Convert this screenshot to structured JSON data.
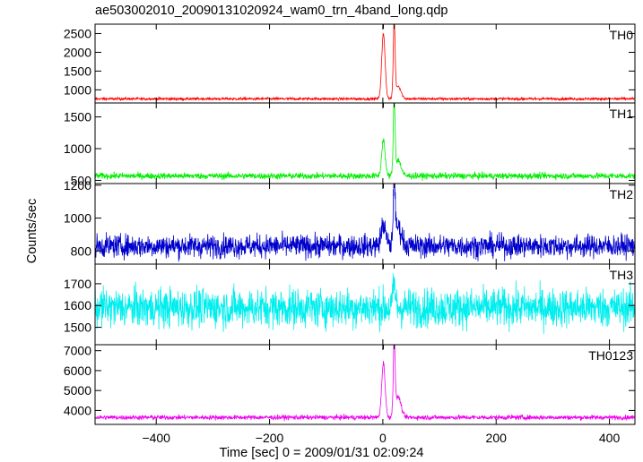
{
  "chart_data": {
    "type": "line",
    "title": "ae503002010_20090131020924_wam0_trn_4band_long.qdp",
    "xlabel": "Time [sec] 0 = 2009/01/31 02:09:24",
    "ylabel": "Counts/sec",
    "xlim": [
      -508,
      445
    ],
    "xticks": [
      -400,
      -200,
      0,
      200,
      400
    ],
    "peak_times": [
      1,
      20
    ],
    "panels": [
      {
        "name": "TH0",
        "color": "#ff0000",
        "ylim": [
          650,
          2750
        ],
        "yticks": [
          1000,
          1500,
          2000,
          2500
        ],
        "baseline": 760,
        "noise": 18,
        "features": [
          {
            "t": 1,
            "peak": 2500,
            "width": 3
          },
          {
            "t": 20,
            "peak": 2750,
            "width": 1.6
          },
          {
            "t": 27,
            "peak": 1100,
            "width": 5
          }
        ]
      },
      {
        "name": "TH1",
        "color": "#00ee00",
        "ylim": [
          450,
          1720
        ],
        "yticks": [
          500,
          1000,
          1500
        ],
        "baseline": 570,
        "noise": 25,
        "features": [
          {
            "t": 1,
            "peak": 1150,
            "width": 3
          },
          {
            "t": 20,
            "peak": 1700,
            "width": 1.6
          },
          {
            "t": 27,
            "peak": 820,
            "width": 5
          }
        ]
      },
      {
        "name": "TH2",
        "color": "#0000cc",
        "ylim": [
          720,
          1210
        ],
        "yticks": [
          800,
          1000,
          1200
        ],
        "baseline": 830,
        "noise": 35,
        "features": [
          {
            "t": 1,
            "peak": 960,
            "width": 4
          },
          {
            "t": 20,
            "peak": 1200,
            "width": 1.6
          },
          {
            "t": 27,
            "peak": 950,
            "width": 6
          }
        ]
      },
      {
        "name": "TH3",
        "color": "#00eeee",
        "ylim": [
          1420,
          1790
        ],
        "yticks": [
          1500,
          1600,
          1700
        ],
        "baseline": 1590,
        "noise": 45,
        "features": [
          {
            "t": 20,
            "peak": 1700,
            "width": 2
          }
        ]
      },
      {
        "name": "TH0123",
        "color": "#ee00ee",
        "ylim": [
          3300,
          7300
        ],
        "yticks": [
          4000,
          5000,
          6000,
          7000
        ],
        "baseline": 3650,
        "noise": 60,
        "features": [
          {
            "t": 1,
            "peak": 6400,
            "width": 3
          },
          {
            "t": 20,
            "peak": 7300,
            "width": 1.6
          },
          {
            "t": 27,
            "peak": 4700,
            "width": 5
          }
        ]
      }
    ]
  }
}
